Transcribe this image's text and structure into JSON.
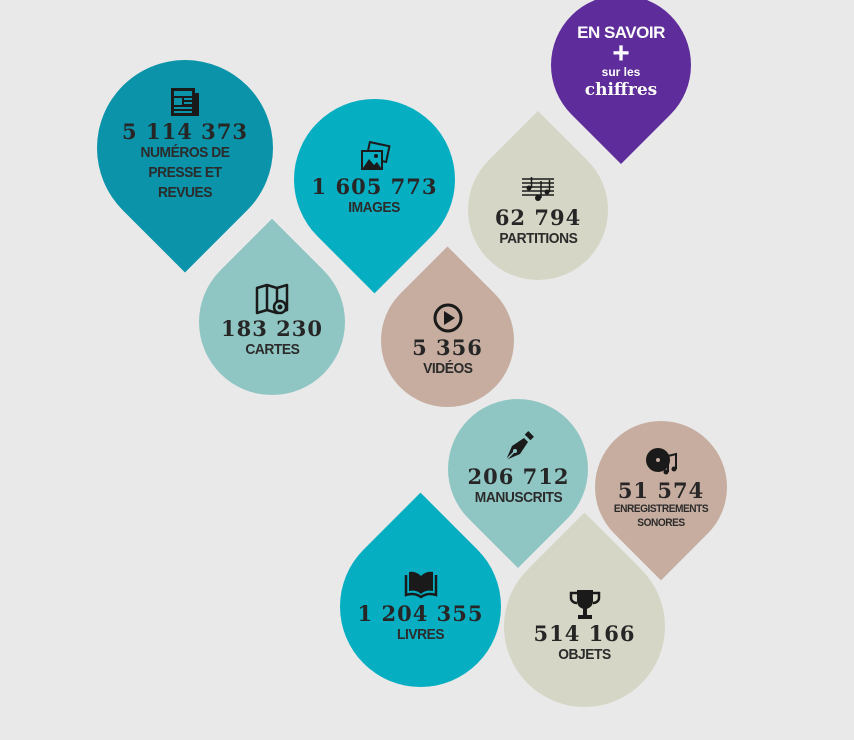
{
  "more": {
    "line1": "EN SAVOIR",
    "plus": "+",
    "line2": "sur les",
    "line3": "chiffres"
  },
  "stats": {
    "presse": {
      "value": "5 114 373",
      "label": "NUMÉROS DE PRESSE ET REVUES",
      "icon": "newspaper-icon"
    },
    "images": {
      "value": "1 605 773",
      "label": "IMAGES",
      "icon": "images-icon"
    },
    "partitions": {
      "value": "62 794",
      "label": "PARTITIONS",
      "icon": "music-score-icon"
    },
    "cartes": {
      "value": "183 230",
      "label": "CARTES",
      "icon": "map-icon"
    },
    "videos": {
      "value": "5 356",
      "label": "VIDÉOS",
      "icon": "play-icon"
    },
    "manuscrits": {
      "value": "206 712",
      "label": "MANUSCRITS",
      "icon": "pen-nib-icon"
    },
    "sonores": {
      "value": "51 574",
      "label": "ENREGISTREMENTS SONORES",
      "icon": "record-icon"
    },
    "livres": {
      "value": "1 204 355",
      "label": "LIVRES",
      "icon": "book-icon"
    },
    "objets": {
      "value": "514 166",
      "label": "OBJETS",
      "icon": "trophy-icon"
    }
  },
  "colors": {
    "teal_dark": "#0a93a9",
    "teal": "#06aec2",
    "mint": "#8fc6c3",
    "taupe": "#c7ad9f",
    "beige": "#d6d6c6",
    "purple": "#5e2d9b",
    "background": "#e9e9e9"
  }
}
